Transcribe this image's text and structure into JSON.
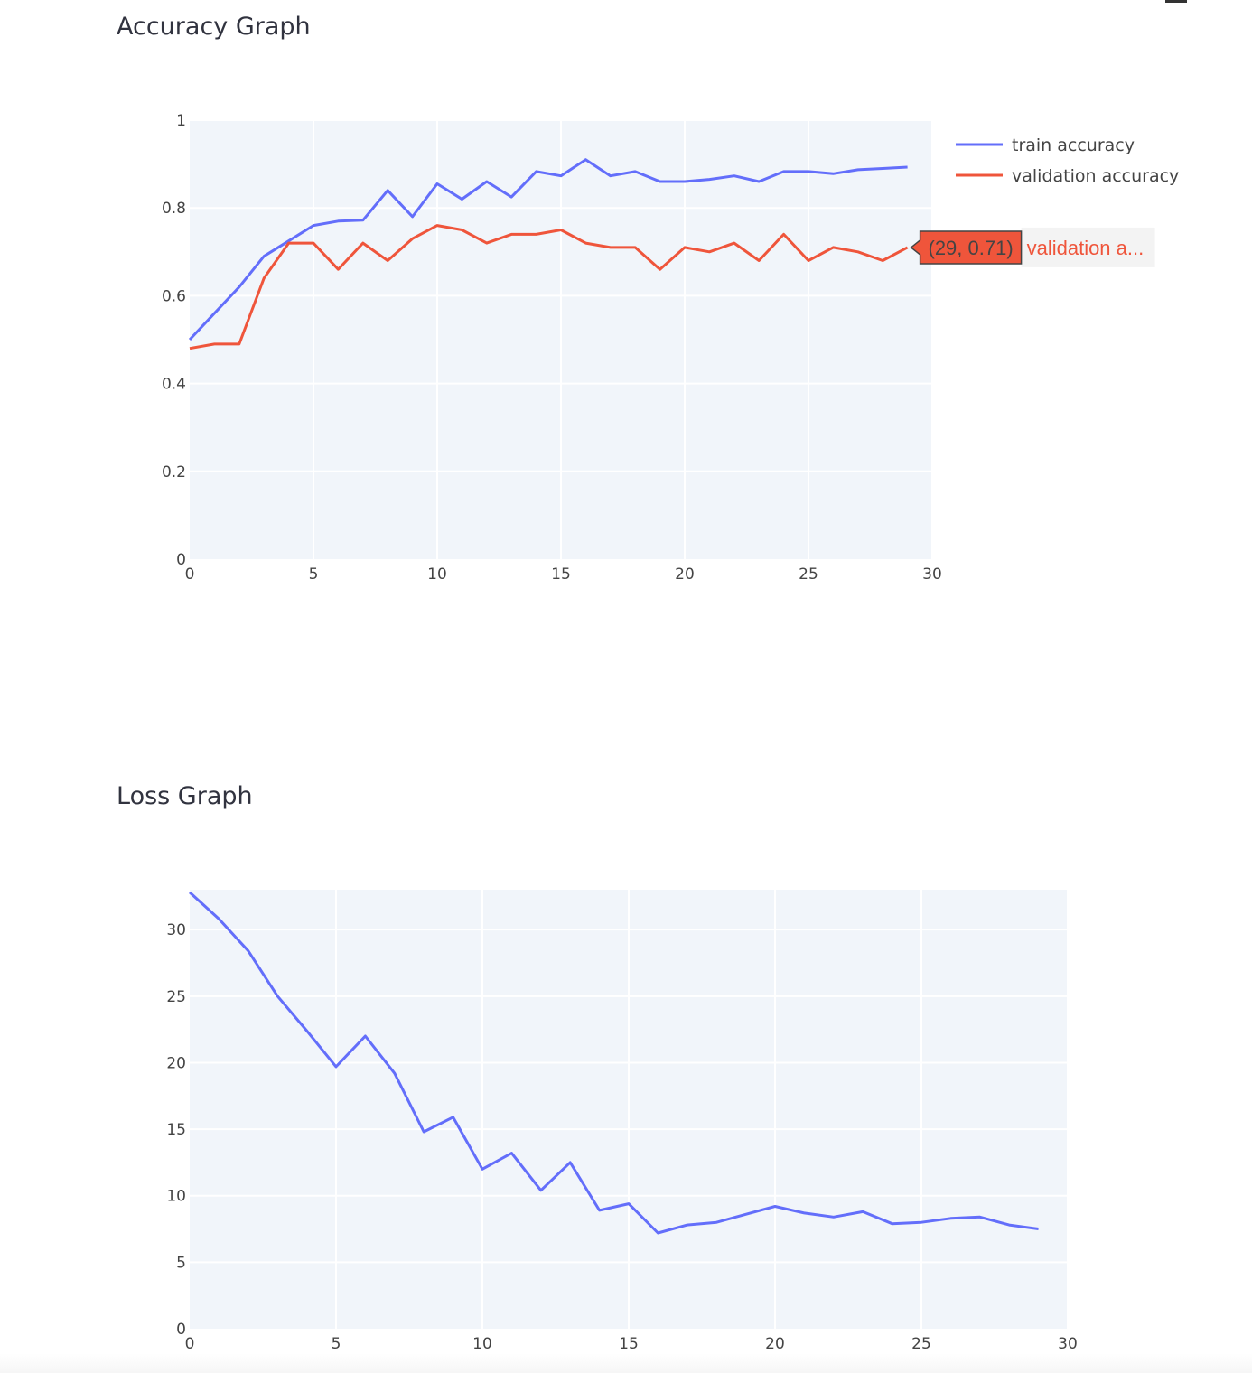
{
  "chart_data": [
    {
      "type": "line",
      "title": "Accuracy Graph",
      "xlim": [
        0,
        30
      ],
      "ylim": [
        0,
        1
      ],
      "xticks": [
        0,
        5,
        10,
        15,
        20,
        25,
        30
      ],
      "yticks": [
        0,
        0.2,
        0.4,
        0.6,
        0.8,
        1
      ],
      "ytick_labels": [
        "0",
        "0.2",
        "0.4",
        "0.6",
        "0.8",
        "1"
      ],
      "grid": true,
      "legend_position": "top-right",
      "x": [
        0,
        1,
        2,
        3,
        4,
        5,
        6,
        7,
        8,
        9,
        10,
        11,
        12,
        13,
        14,
        15,
        16,
        17,
        18,
        19,
        20,
        21,
        22,
        23,
        24,
        25,
        26,
        27,
        28,
        29
      ],
      "series": [
        {
          "name": "train accuracy",
          "color": "#636efa",
          "values": [
            0.5,
            0.56,
            0.62,
            0.69,
            0.725,
            0.76,
            0.77,
            0.772,
            0.84,
            0.78,
            0.855,
            0.82,
            0.86,
            0.825,
            0.883,
            0.873,
            0.91,
            0.873,
            0.883,
            0.86,
            0.86,
            0.865,
            0.873,
            0.86,
            0.883,
            0.883,
            0.878,
            0.887,
            0.89,
            0.893
          ]
        },
        {
          "name": "validation accuracy",
          "color": "#ef553b",
          "values": [
            0.48,
            0.49,
            0.49,
            0.64,
            0.72,
            0.72,
            0.66,
            0.72,
            0.68,
            0.73,
            0.76,
            0.75,
            0.72,
            0.74,
            0.74,
            0.75,
            0.72,
            0.71,
            0.71,
            0.66,
            0.71,
            0.7,
            0.72,
            0.68,
            0.74,
            0.68,
            0.71,
            0.7,
            0.68,
            0.71
          ]
        }
      ],
      "hover": {
        "series_index": 1,
        "point_index": 29,
        "value_label": "(29, 0.71)",
        "name_label": "validation a..."
      }
    },
    {
      "type": "line",
      "title": "Loss Graph",
      "xlim": [
        0,
        30
      ],
      "ylim": [
        0,
        33
      ],
      "xticks": [
        0,
        5,
        10,
        15,
        20,
        25,
        30
      ],
      "yticks": [
        0,
        5,
        10,
        15,
        20,
        25,
        30
      ],
      "ytick_labels": [
        "0",
        "5",
        "10",
        "15",
        "20",
        "25",
        "30"
      ],
      "grid": true,
      "x": [
        0,
        1,
        2,
        3,
        4,
        5,
        6,
        7,
        8,
        9,
        10,
        11,
        12,
        13,
        14,
        15,
        16,
        17,
        18,
        19,
        20,
        21,
        22,
        23,
        24,
        25,
        26,
        27,
        28,
        29
      ],
      "series": [
        {
          "color": "#636efa",
          "values": [
            32.8,
            30.8,
            28.4,
            25.0,
            22.4,
            19.7,
            22.0,
            19.2,
            14.8,
            15.9,
            12.0,
            13.2,
            10.4,
            12.5,
            8.9,
            9.4,
            7.2,
            7.8,
            8.0,
            8.6,
            9.2,
            8.7,
            8.4,
            8.8,
            7.9,
            8.0,
            8.3,
            8.4,
            7.8,
            7.5
          ]
        }
      ]
    }
  ]
}
